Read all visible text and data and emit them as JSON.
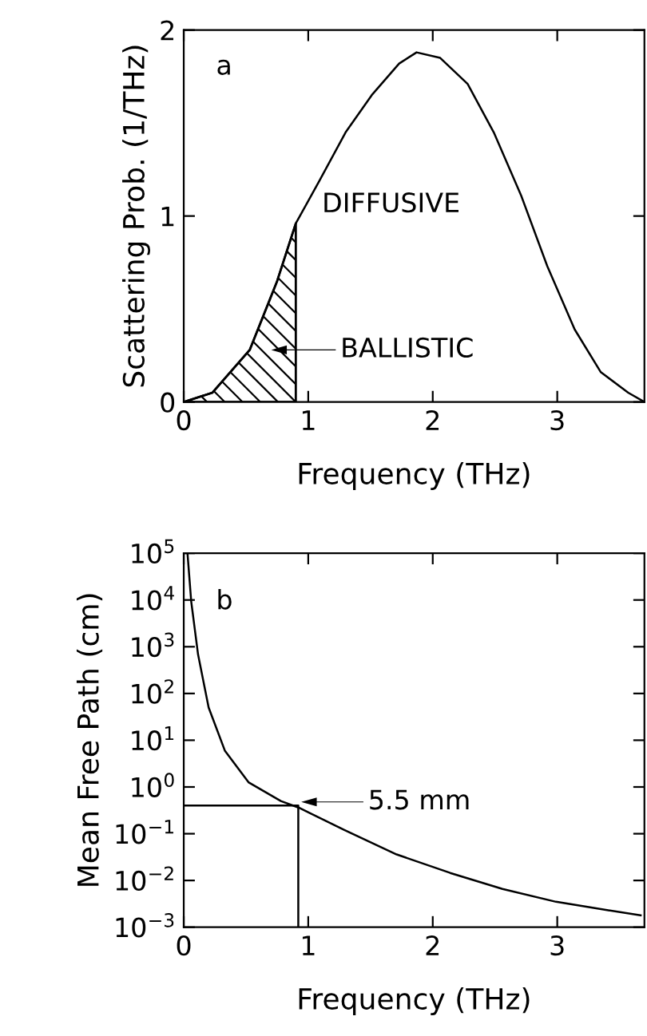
{
  "chart_data": [
    {
      "type": "line",
      "xlabel": "Frequency (THz)",
      "ylabel": "Scattering Prob. (1/THz)",
      "xlim": [
        0,
        3.7
      ],
      "ylim": [
        0,
        2
      ],
      "xticks": [
        0,
        1,
        2,
        3
      ],
      "yticks": [
        0,
        1,
        2
      ],
      "grid": false,
      "legend": false,
      "series": [
        {
          "type": "line",
          "color": "#000000",
          "x": [
            0,
            0.23,
            0.53,
            0.75,
            0.9,
            1.09,
            1.3,
            1.51,
            1.73,
            1.87,
            2.06,
            2.28,
            2.49,
            2.71,
            2.92,
            3.14,
            3.35,
            3.57,
            3.7
          ],
          "values": [
            0,
            0.05,
            0.28,
            0.65,
            0.96,
            1.19,
            1.45,
            1.65,
            1.82,
            1.88,
            1.85,
            1.71,
            1.45,
            1.11,
            0.73,
            0.39,
            0.16,
            0.05,
            0
          ]
        },
        {
          "type": "area",
          "color": "#000000",
          "x": [
            0,
            0.23,
            0.53,
            0.75,
            0.9
          ],
          "values": [
            0,
            0.05,
            0.28,
            0.65,
            0.96
          ]
        }
      ],
      "annotations": [
        "a",
        "DIFFUSIVE",
        "BALLISTIC"
      ]
    },
    {
      "type": "line",
      "xlabel": "Frequency (THz)",
      "ylabel": "Mean Free Path (cm)",
      "log": "y",
      "xlim": [
        0,
        3.7
      ],
      "ylim": [
        0.001,
        100000
      ],
      "xticks": [
        0,
        1,
        2,
        3
      ],
      "yticks": [
        {
          "value": 0.001,
          "label": "10$^{−3}$"
        },
        {
          "value": 0.01,
          "label": "10$^{−2}$"
        },
        {
          "value": 0.1,
          "label": "10$^{−1}$"
        },
        {
          "value": 1,
          "label": "10$^{0}$"
        },
        {
          "value": 10,
          "label": "10$^{1}$"
        },
        {
          "value": 100,
          "label": "10$^{2}$"
        },
        {
          "value": 1000,
          "label": "10$^{3}$"
        },
        {
          "value": 10000,
          "label": "10$^{4}$"
        },
        {
          "value": 100000,
          "label": "10$^{5}$"
        }
      ],
      "grid": false,
      "legend": false,
      "series": [
        {
          "type": "line",
          "color": "#000000",
          "x": [
            0.03,
            0.06,
            0.115,
            0.2,
            0.33,
            0.52,
            0.78,
            0.925,
            1.29,
            1.71,
            2.14,
            2.56,
            2.99,
            3.41,
            3.67
          ],
          "values": [
            100000,
            9300,
            680,
            50,
            6.0,
            1.26,
            0.5,
            0.36,
            0.12,
            0.036,
            0.0145,
            0.0066,
            0.0035,
            0.0023,
            0.0018
          ]
        },
        {
          "type": "line",
          "color": "#000000",
          "x": [
            0,
            0.92,
            0.92
          ],
          "values": [
            0.4,
            0.4,
            0.001
          ]
        }
      ],
      "annotations": [
        "b",
        "5.5 mm"
      ]
    }
  ]
}
